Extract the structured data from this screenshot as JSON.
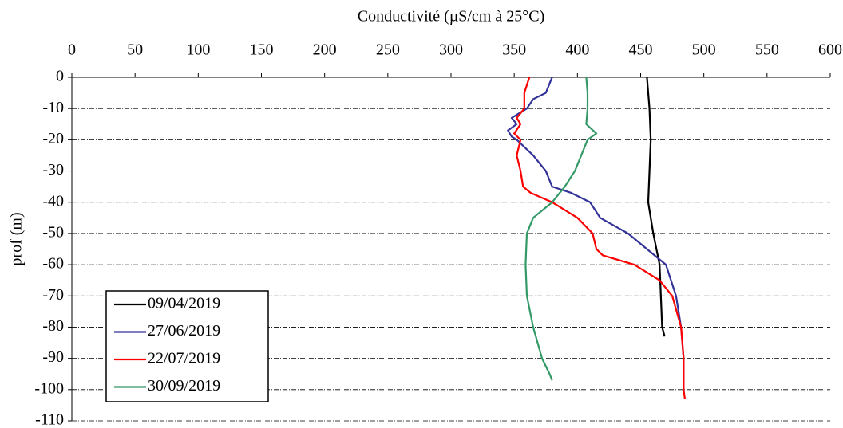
{
  "chart_data": {
    "type": "line",
    "title": "Conductivité (µS/cm à 25°C)",
    "y_label": "prof (m)",
    "xlim": [
      0,
      600
    ],
    "xticks": [
      0,
      50,
      100,
      150,
      200,
      250,
      300,
      350,
      400,
      450,
      500,
      550,
      600
    ],
    "ylim": [
      -110,
      0
    ],
    "yticks": [
      0,
      -10,
      -20,
      -30,
      -40,
      -50,
      -60,
      -70,
      -80,
      -90,
      -100,
      -110
    ],
    "grid": true,
    "legend": "lower left",
    "series": [
      {
        "name": "09/04/2019",
        "color": "#000000",
        "depth": [
          0,
          -10,
          -20,
          -30,
          -40,
          -50,
          -60,
          -70,
          -80,
          -83
        ],
        "values": [
          455,
          457,
          458,
          457,
          456,
          460,
          465,
          466,
          467,
          469
        ]
      },
      {
        "name": "27/06/2019",
        "color": "#333399",
        "depth": [
          0,
          -2,
          -5,
          -7,
          -10,
          -13,
          -15,
          -17,
          -19,
          -20,
          -25,
          -30,
          -35,
          -37,
          -40,
          -45,
          -50,
          -55,
          -60,
          -70,
          -80,
          -90,
          -100
        ],
        "values": [
          380,
          378,
          375,
          365,
          360,
          348,
          352,
          345,
          348,
          352,
          365,
          375,
          380,
          395,
          410,
          418,
          440,
          455,
          470,
          478,
          482,
          484,
          484
        ]
      },
      {
        "name": "22/07/2019",
        "color": "#ff0000",
        "depth": [
          0,
          -5,
          -10,
          -13,
          -15,
          -18,
          -20,
          -25,
          -30,
          -35,
          -37,
          -40,
          -45,
          -50,
          -55,
          -57,
          -60,
          -65,
          -70,
          -80,
          -90,
          -100,
          -103
        ],
        "values": [
          362,
          358,
          358,
          352,
          355,
          350,
          355,
          352,
          355,
          357,
          363,
          380,
          400,
          412,
          415,
          420,
          445,
          465,
          475,
          482,
          484,
          484,
          485
        ]
      },
      {
        "name": "30/09/2019",
        "color": "#339966",
        "depth": [
          0,
          -5,
          -10,
          -15,
          -18,
          -20,
          -25,
          -30,
          -35,
          -40,
          -45,
          -50,
          -60,
          -70,
          -80,
          -90,
          -95,
          -97
        ],
        "values": [
          407,
          408,
          408,
          407,
          415,
          408,
          403,
          398,
          390,
          380,
          365,
          360,
          359,
          360,
          365,
          372,
          378,
          380
        ]
      }
    ]
  }
}
